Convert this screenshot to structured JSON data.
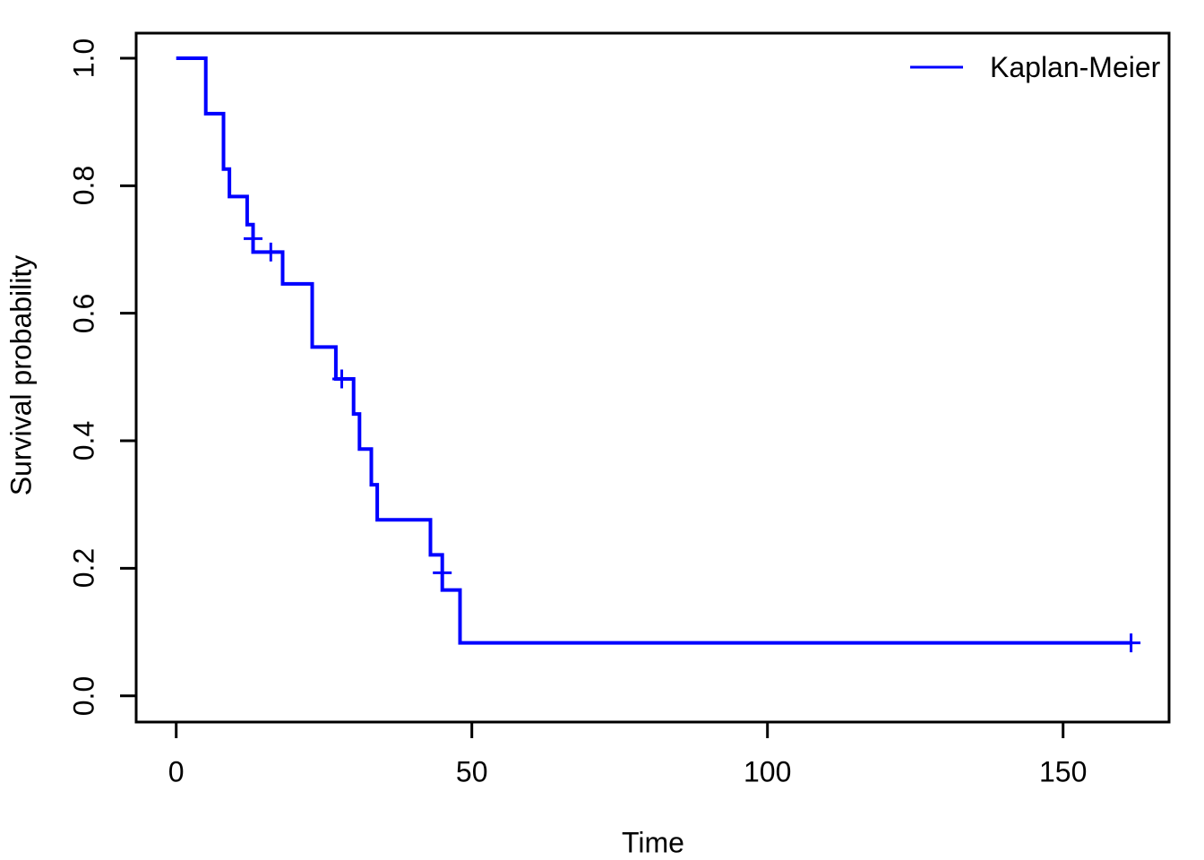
{
  "chart_data": {
    "type": "line",
    "subtype": "kaplan-meier-survival-step-curve",
    "title": "",
    "xlabel": "Time",
    "ylabel": "Survival probability",
    "x_ticks": [
      "0",
      "50",
      "100",
      "150"
    ],
    "y_ticks": [
      "0.0",
      "0.2",
      "0.4",
      "0.6",
      "0.8",
      "1.0"
    ],
    "xlim": [
      -7,
      168
    ],
    "ylim": [
      -0.04,
      1.04
    ],
    "grid": false,
    "background": "#FFFFFF",
    "axis_color": "#000000",
    "legend": {
      "position": "top-right",
      "entries": [
        {
          "label": "Kaplan-Meier",
          "color": "#0000FF",
          "line_style": "solid"
        }
      ]
    },
    "series": [
      {
        "name": "Kaplan-Meier",
        "color": "#0000FF",
        "steps": [
          [
            0,
            1.0
          ],
          [
            5,
            0.913
          ],
          [
            8,
            0.826
          ],
          [
            9,
            0.783
          ],
          [
            12,
            0.739
          ],
          [
            13,
            0.696
          ],
          [
            18,
            0.646
          ],
          [
            23,
            0.547
          ],
          [
            27,
            0.497
          ],
          [
            30,
            0.442
          ],
          [
            31,
            0.387
          ],
          [
            33,
            0.331
          ],
          [
            34,
            0.276
          ],
          [
            43,
            0.221
          ],
          [
            45,
            0.166
          ],
          [
            48,
            0.083
          ]
        ],
        "curve_end_time": 161.5,
        "censor_marks": [
          [
            13,
            0.717
          ],
          [
            16,
            0.696
          ],
          [
            28,
            0.497
          ],
          [
            45,
            0.193
          ],
          [
            161.5,
            0.083
          ]
        ]
      }
    ]
  }
}
